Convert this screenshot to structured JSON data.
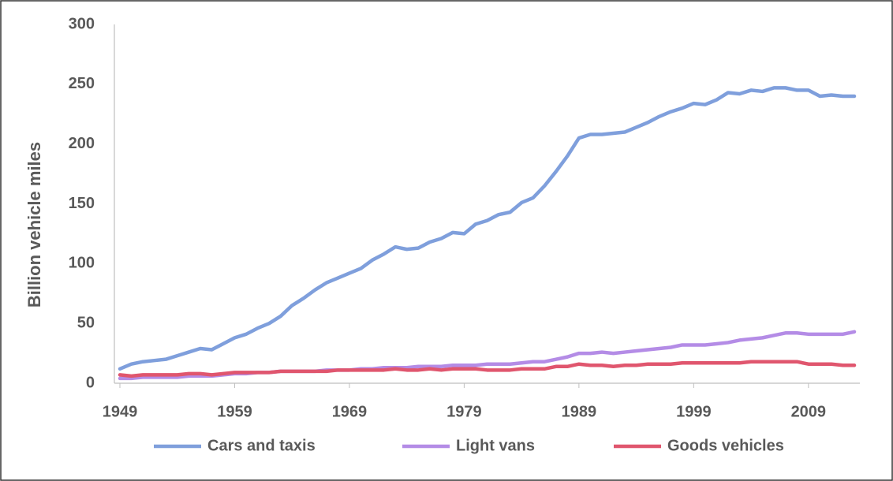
{
  "chart_data": {
    "type": "line",
    "y_label": "Billion vehicle miles",
    "x": [
      1949,
      1950,
      1951,
      1952,
      1953,
      1954,
      1955,
      1956,
      1957,
      1958,
      1959,
      1960,
      1961,
      1962,
      1963,
      1964,
      1965,
      1966,
      1967,
      1968,
      1969,
      1970,
      1971,
      1972,
      1973,
      1974,
      1975,
      1976,
      1977,
      1978,
      1979,
      1980,
      1981,
      1982,
      1983,
      1984,
      1985,
      1986,
      1987,
      1988,
      1989,
      1990,
      1991,
      1992,
      1993,
      1994,
      1995,
      1996,
      1997,
      1998,
      1999,
      2000,
      2001,
      2002,
      2003,
      2004,
      2005,
      2006,
      2007,
      2008,
      2009,
      2010,
      2011,
      2012,
      2013
    ],
    "series": [
      {
        "name": "Cars and taxis",
        "color": "#7f9fdc",
        "values": [
          12,
          16,
          18,
          19,
          20,
          23,
          26,
          29,
          28,
          33,
          38,
          41,
          46,
          50,
          56,
          65,
          71,
          78,
          84,
          88,
          92,
          96,
          103,
          108,
          114,
          112,
          113,
          118,
          121,
          126,
          125,
          133,
          136,
          141,
          143,
          151,
          155,
          165,
          177,
          190,
          205,
          208,
          208,
          209,
          210,
          214,
          218,
          223,
          227,
          230,
          234,
          233,
          237,
          243,
          242,
          245,
          244,
          247,
          247,
          245,
          245,
          240,
          241,
          240,
          240
        ]
      },
      {
        "name": "Light vans",
        "color": "#b48ce6",
        "values": [
          4,
          4,
          5,
          5,
          5,
          5,
          6,
          6,
          6,
          7,
          8,
          8,
          9,
          9,
          10,
          10,
          10,
          10,
          11,
          11,
          11,
          12,
          12,
          13,
          13,
          13,
          14,
          14,
          14,
          15,
          15,
          15,
          16,
          16,
          16,
          17,
          18,
          18,
          20,
          22,
          25,
          25,
          26,
          25,
          26,
          27,
          28,
          29,
          30,
          32,
          32,
          32,
          33,
          34,
          36,
          37,
          38,
          40,
          42,
          42,
          41,
          41,
          41,
          41,
          43
        ]
      },
      {
        "name": "Goods vehicles",
        "color": "#e0566e",
        "values": [
          7,
          6,
          7,
          7,
          7,
          7,
          8,
          8,
          7,
          8,
          9,
          9,
          9,
          9,
          10,
          10,
          10,
          10,
          10,
          11,
          11,
          11,
          11,
          11,
          12,
          11,
          11,
          12,
          11,
          12,
          12,
          12,
          11,
          11,
          11,
          12,
          12,
          12,
          14,
          14,
          16,
          15,
          15,
          14,
          15,
          15,
          16,
          16,
          16,
          17,
          17,
          17,
          17,
          17,
          17,
          18,
          18,
          18,
          18,
          18,
          16,
          16,
          16,
          15,
          15
        ]
      }
    ],
    "xlim": [
      1949,
      2013
    ],
    "xticks": [
      1949,
      1959,
      1969,
      1979,
      1989,
      1999,
      2009
    ],
    "ylim": [
      0,
      300
    ],
    "yticks": [
      0,
      50,
      100,
      150,
      200,
      250,
      300
    ],
    "grid": false,
    "legend": "bottom"
  }
}
